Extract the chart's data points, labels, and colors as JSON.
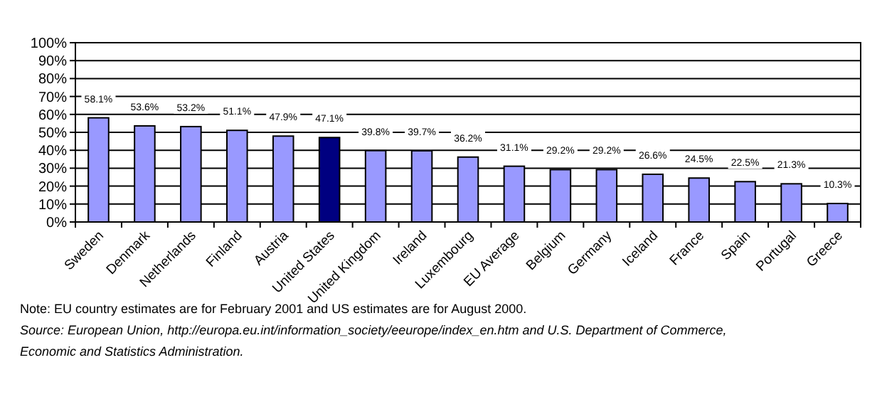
{
  "chart_data": {
    "type": "bar",
    "categories": [
      "Sweden",
      "Denmark",
      "Netherlands",
      "Finland",
      "Austria",
      "United States",
      "United Kingdom",
      "Ireland",
      "Luxembourg",
      "EU Average",
      "Belgium",
      "Germany",
      "Iceland",
      "France",
      "Spain",
      "Portugal",
      "Greece"
    ],
    "values": [
      58.1,
      53.6,
      53.2,
      51.1,
      47.9,
      47.1,
      39.8,
      39.7,
      36.2,
      31.1,
      29.2,
      29.2,
      26.6,
      24.5,
      22.5,
      21.3,
      10.3
    ],
    "colors": [
      "#9999ff",
      "#9999ff",
      "#9999ff",
      "#9999ff",
      "#9999ff",
      "#000080",
      "#9999ff",
      "#9999ff",
      "#9999ff",
      "#9999ff",
      "#9999ff",
      "#9999ff",
      "#9999ff",
      "#9999ff",
      "#9999ff",
      "#9999ff",
      "#9999ff"
    ],
    "value_labels": [
      "58.1%",
      "53.6%",
      "53.2%",
      "51.1%",
      "47.9%",
      "47.1%",
      "39.8%",
      "39.7%",
      "36.2%",
      "31.1%",
      "29.2%",
      "29.2%",
      "26.6%",
      "24.5%",
      "22.5%",
      "21.3%",
      "10.3%"
    ],
    "ylim": [
      0,
      100
    ],
    "yticks": [
      {
        "value": 0,
        "label": "0%"
      },
      {
        "value": 10,
        "label": "10%"
      },
      {
        "value": 20,
        "label": "20%"
      },
      {
        "value": 30,
        "label": "30%"
      },
      {
        "value": 40,
        "label": "40%"
      },
      {
        "value": 50,
        "label": "50%"
      },
      {
        "value": 60,
        "label": "60%"
      },
      {
        "value": 70,
        "label": "70%"
      },
      {
        "value": 80,
        "label": "80%"
      },
      {
        "value": 90,
        "label": "90%"
      },
      {
        "value": 100,
        "label": "100%"
      }
    ],
    "grid": "y",
    "annotations": [
      "Note: EU country estimates are for February 2001 and US estimates are for August 2000.",
      "Source: European Union, http://europa.eu.int/information_society/eeurope/index_en.htm and U.S. Department of Commerce, Economic and Statistics Administration."
    ]
  }
}
